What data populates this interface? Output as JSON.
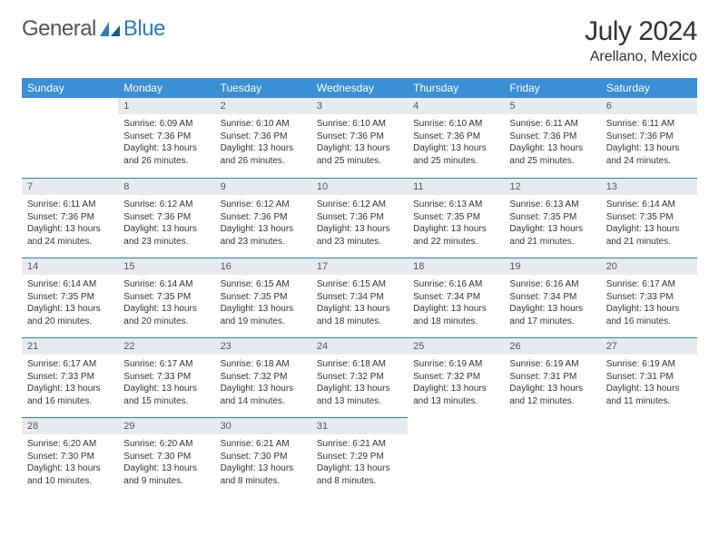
{
  "logo": {
    "text1": "General",
    "text2": "Blue"
  },
  "title": "July 2024",
  "location": "Arellano, Mexico",
  "colors": {
    "header_bg": "#3b8fd4",
    "header_text": "#ffffff",
    "daynum_bg": "#e8ebed",
    "row_divider": "#2a7dbf",
    "body_text": "#333333",
    "logo_gray": "#555555",
    "logo_blue": "#2a7dbf"
  },
  "typography": {
    "title_fontsize": 30,
    "location_fontsize": 16,
    "dayheader_fontsize": 12,
    "daynum_fontsize": 11,
    "body_fontsize": 10
  },
  "layout": {
    "columns": 7,
    "rows": 5,
    "start_offset": 1
  },
  "day_headers": [
    "Sunday",
    "Monday",
    "Tuesday",
    "Wednesday",
    "Thursday",
    "Friday",
    "Saturday"
  ],
  "days": [
    {
      "n": 1,
      "sunrise": "6:09 AM",
      "sunset": "7:36 PM",
      "daylight": "13 hours and 26 minutes."
    },
    {
      "n": 2,
      "sunrise": "6:10 AM",
      "sunset": "7:36 PM",
      "daylight": "13 hours and 26 minutes."
    },
    {
      "n": 3,
      "sunrise": "6:10 AM",
      "sunset": "7:36 PM",
      "daylight": "13 hours and 25 minutes."
    },
    {
      "n": 4,
      "sunrise": "6:10 AM",
      "sunset": "7:36 PM",
      "daylight": "13 hours and 25 minutes."
    },
    {
      "n": 5,
      "sunrise": "6:11 AM",
      "sunset": "7:36 PM",
      "daylight": "13 hours and 25 minutes."
    },
    {
      "n": 6,
      "sunrise": "6:11 AM",
      "sunset": "7:36 PM",
      "daylight": "13 hours and 24 minutes."
    },
    {
      "n": 7,
      "sunrise": "6:11 AM",
      "sunset": "7:36 PM",
      "daylight": "13 hours and 24 minutes."
    },
    {
      "n": 8,
      "sunrise": "6:12 AM",
      "sunset": "7:36 PM",
      "daylight": "13 hours and 23 minutes."
    },
    {
      "n": 9,
      "sunrise": "6:12 AM",
      "sunset": "7:36 PM",
      "daylight": "13 hours and 23 minutes."
    },
    {
      "n": 10,
      "sunrise": "6:12 AM",
      "sunset": "7:36 PM",
      "daylight": "13 hours and 23 minutes."
    },
    {
      "n": 11,
      "sunrise": "6:13 AM",
      "sunset": "7:35 PM",
      "daylight": "13 hours and 22 minutes."
    },
    {
      "n": 12,
      "sunrise": "6:13 AM",
      "sunset": "7:35 PM",
      "daylight": "13 hours and 21 minutes."
    },
    {
      "n": 13,
      "sunrise": "6:14 AM",
      "sunset": "7:35 PM",
      "daylight": "13 hours and 21 minutes."
    },
    {
      "n": 14,
      "sunrise": "6:14 AM",
      "sunset": "7:35 PM",
      "daylight": "13 hours and 20 minutes."
    },
    {
      "n": 15,
      "sunrise": "6:14 AM",
      "sunset": "7:35 PM",
      "daylight": "13 hours and 20 minutes."
    },
    {
      "n": 16,
      "sunrise": "6:15 AM",
      "sunset": "7:35 PM",
      "daylight": "13 hours and 19 minutes."
    },
    {
      "n": 17,
      "sunrise": "6:15 AM",
      "sunset": "7:34 PM",
      "daylight": "13 hours and 18 minutes."
    },
    {
      "n": 18,
      "sunrise": "6:16 AM",
      "sunset": "7:34 PM",
      "daylight": "13 hours and 18 minutes."
    },
    {
      "n": 19,
      "sunrise": "6:16 AM",
      "sunset": "7:34 PM",
      "daylight": "13 hours and 17 minutes."
    },
    {
      "n": 20,
      "sunrise": "6:17 AM",
      "sunset": "7:33 PM",
      "daylight": "13 hours and 16 minutes."
    },
    {
      "n": 21,
      "sunrise": "6:17 AM",
      "sunset": "7:33 PM",
      "daylight": "13 hours and 16 minutes."
    },
    {
      "n": 22,
      "sunrise": "6:17 AM",
      "sunset": "7:33 PM",
      "daylight": "13 hours and 15 minutes."
    },
    {
      "n": 23,
      "sunrise": "6:18 AM",
      "sunset": "7:32 PM",
      "daylight": "13 hours and 14 minutes."
    },
    {
      "n": 24,
      "sunrise": "6:18 AM",
      "sunset": "7:32 PM",
      "daylight": "13 hours and 13 minutes."
    },
    {
      "n": 25,
      "sunrise": "6:19 AM",
      "sunset": "7:32 PM",
      "daylight": "13 hours and 13 minutes."
    },
    {
      "n": 26,
      "sunrise": "6:19 AM",
      "sunset": "7:31 PM",
      "daylight": "13 hours and 12 minutes."
    },
    {
      "n": 27,
      "sunrise": "6:19 AM",
      "sunset": "7:31 PM",
      "daylight": "13 hours and 11 minutes."
    },
    {
      "n": 28,
      "sunrise": "6:20 AM",
      "sunset": "7:30 PM",
      "daylight": "13 hours and 10 minutes."
    },
    {
      "n": 29,
      "sunrise": "6:20 AM",
      "sunset": "7:30 PM",
      "daylight": "13 hours and 9 minutes."
    },
    {
      "n": 30,
      "sunrise": "6:21 AM",
      "sunset": "7:30 PM",
      "daylight": "13 hours and 8 minutes."
    },
    {
      "n": 31,
      "sunrise": "6:21 AM",
      "sunset": "7:29 PM",
      "daylight": "13 hours and 8 minutes."
    }
  ],
  "labels": {
    "sunrise": "Sunrise:",
    "sunset": "Sunset:",
    "daylight": "Daylight:"
  }
}
